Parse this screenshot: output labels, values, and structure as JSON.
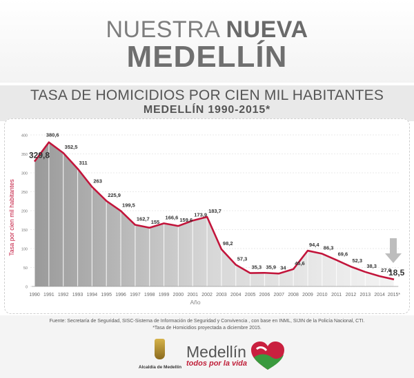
{
  "brand": {
    "line1_light": "NUESTRA ",
    "line1_bold": "NUEVA",
    "line2": "MEDELLÍN"
  },
  "header": {
    "title": "TASA DE HOMICIDIOS POR CIEN MIL HABITANTES",
    "subtitle": "MEDELLÍN 1990-2015*"
  },
  "chart_data": {
    "type": "area",
    "x": [
      "1990",
      "1991",
      "1992",
      "1993",
      "1994",
      "1995",
      "1996",
      "1997",
      "1998",
      "1999",
      "2000",
      "2001",
      "2002",
      "2003",
      "2004",
      "2005",
      "2006",
      "2007",
      "2008",
      "2009",
      "2010",
      "2011",
      "2012",
      "2013",
      "2014",
      "2015*"
    ],
    "values": [
      329.8,
      380.6,
      352.5,
      311,
      263,
      225.9,
      199.5,
      162.7,
      155,
      166.6,
      159.6,
      173.9,
      183.7,
      98.2,
      57.3,
      35.3,
      35.9,
      34,
      45.6,
      94.4,
      86.3,
      69.6,
      52.3,
      38.3,
      27.0,
      18.5
    ],
    "value_labels": [
      "329,8",
      "380,6",
      "352,5",
      "311",
      "263",
      "225,9",
      "199,5",
      "162,7",
      "155",
      "166,6",
      "159,6",
      "173,9",
      "183,7",
      "98,2",
      "57,3",
      "35,3",
      "35,9",
      "34",
      "45,6",
      "94,4",
      "86,3",
      "69,6",
      "52,3",
      "38,3",
      "27,0",
      "18,5"
    ],
    "yticks": [
      "0",
      "50",
      "100",
      "150",
      "200",
      "250",
      "300",
      "350",
      "400"
    ],
    "ylim": [
      0,
      400
    ],
    "xlabel": "Año",
    "ylabel": "Tasa por cien mil habitantes",
    "grid": true,
    "colors": {
      "line": "#c2153b",
      "area_shade_left": "#9e9e9e",
      "area_shade_right": "#f0f0f0",
      "arrow": "#bdbdbd"
    }
  },
  "footer": {
    "source_line1": "Fuente: Secretaría de Seguridad, SISC-Sistema de Información de Seguridad y Convivencia , con base en INML, SIJIN de la Policía Nacional, CTI.",
    "source_line2": "*Tasa de Homicidios proyectada a diciembre 2015.",
    "alcaldia": "Alcaldía de Medellín",
    "medellin": "Medellín",
    "slogan": "todos por la vida"
  }
}
